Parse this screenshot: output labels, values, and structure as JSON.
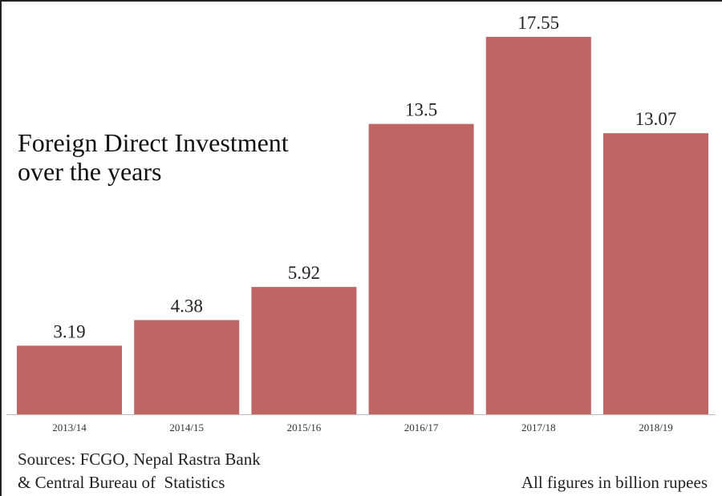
{
  "chart_data": {
    "type": "bar",
    "title": "Foreign Direct Investment over the years",
    "title_lines": [
      "Foreign Direct Investment",
      "over the years"
    ],
    "categories": [
      "2013/14",
      "2014/15",
      "2015/16",
      "2016/17",
      "2017/18",
      "2018/19"
    ],
    "values": [
      3.19,
      4.38,
      5.92,
      13.5,
      17.55,
      13.07
    ],
    "value_labels": [
      "3.19",
      "4.38",
      "5.92",
      "13.5",
      "17.55",
      "13.07"
    ],
    "xlabel": "",
    "ylabel": "",
    "ylim": [
      0,
      17.55
    ],
    "grid": false,
    "bar_color": "#BE6666",
    "sources_lines": [
      "Sources: FCGO, Nepal Rastra Bank",
      "& Central Bureau of  Statistics"
    ],
    "unit_note": "All figures in billion rupees"
  }
}
